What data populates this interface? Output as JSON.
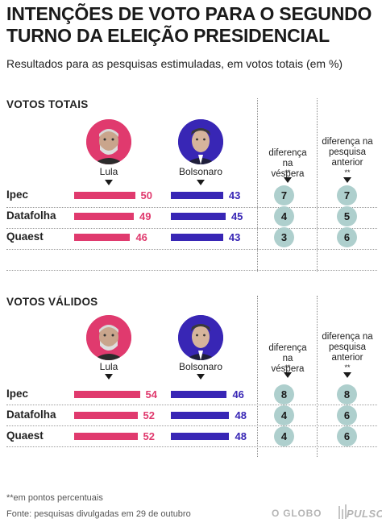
{
  "header": {
    "title": "INTENÇÕES DE VOTO PARA O SEGUNDO TURNO DA ELEIÇÃO PRESIDENCIAL",
    "subtitle": "Resultados para as pesquisas estimuladas, em votos totais (em %)"
  },
  "colors": {
    "lula": "#e03a6e",
    "bolsonaro": "#3826b5",
    "diff_circle": "#aecfcd"
  },
  "chart_data": [
    {
      "type": "bar",
      "title": "VOTOS TOTAIS",
      "candidates": [
        "Lula",
        "Bolsonaro"
      ],
      "categories": [
        "Ipec",
        "Datafolha",
        "Quaest"
      ],
      "series": [
        {
          "name": "Lula",
          "values": [
            50,
            49,
            46
          ]
        },
        {
          "name": "Bolsonaro",
          "values": [
            43,
            45,
            43
          ]
        }
      ],
      "diff_headers": [
        "diferença na véspera",
        "diferença na pesquisa anterior"
      ],
      "diff_mark": "**",
      "diff_eve": [
        7,
        4,
        3
      ],
      "diff_prev": [
        7,
        5,
        6
      ]
    },
    {
      "type": "bar",
      "title": "VOTOS VÁLIDOS",
      "candidates": [
        "Lula",
        "Bolsonaro"
      ],
      "categories": [
        "Ipec",
        "Datafolha",
        "Quaest"
      ],
      "series": [
        {
          "name": "Lula",
          "values": [
            54,
            52,
            52
          ]
        },
        {
          "name": "Bolsonaro",
          "values": [
            46,
            48,
            48
          ]
        }
      ],
      "diff_headers": [
        "diferença na véspera",
        "diferença na pesquisa anterior"
      ],
      "diff_mark": "**",
      "diff_eve": [
        8,
        4,
        4
      ],
      "diff_prev": [
        8,
        6,
        6
      ]
    }
  ],
  "footer": {
    "footnote": "**em pontos percentuais",
    "source": "Fonte: pesquisas divulgadas em 29 de outubro",
    "logo_globo": "O GLOBO",
    "logo_pulso": "PULSO"
  }
}
